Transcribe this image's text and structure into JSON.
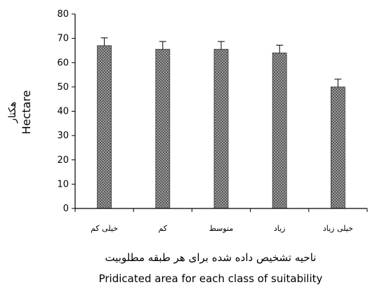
{
  "chart_data": {
    "type": "bar",
    "categories": [
      "خیلی کم",
      "کم",
      "متوسط",
      "زیاد",
      "خیلی زیاد"
    ],
    "values": [
      67,
      65.5,
      65.5,
      64,
      50
    ],
    "error": [
      3.2,
      3.2,
      3.2,
      3.2,
      3.2
    ],
    "ylabel_fa": "هکتار",
    "ylabel_en": "Hectare",
    "xlabel_fa": "ناحیه تشخیص داده شده برای هر طبقه مطلوبیت",
    "xlabel_en": "Pridicated area for each class of suitability",
    "ylim": [
      0,
      80
    ],
    "yticks": [
      0,
      10,
      20,
      30,
      40,
      50,
      60,
      70,
      80
    ],
    "grid": false,
    "bar_pattern": "dotted-gray"
  }
}
